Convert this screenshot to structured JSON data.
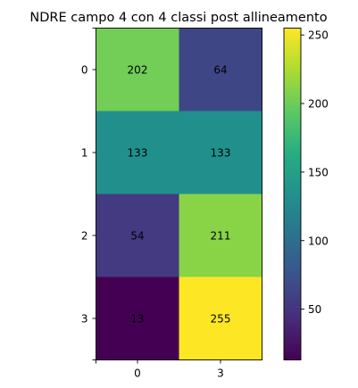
{
  "chart_data": {
    "type": "heatmap",
    "title": "NDRE campo 4 con 4 classi post allineamento",
    "xticklabels": [
      "0",
      "3"
    ],
    "yticklabels": [
      "0",
      "1",
      "2",
      "3"
    ],
    "values": [
      [
        202,
        64
      ],
      [
        133,
        133
      ],
      [
        54,
        211
      ],
      [
        13,
        255
      ]
    ],
    "colormap": "viridis",
    "vmin": 13,
    "vmax": 255,
    "colorbar_ticks": [
      50,
      100,
      150,
      200,
      250
    ],
    "annotation_color": "#000000"
  }
}
